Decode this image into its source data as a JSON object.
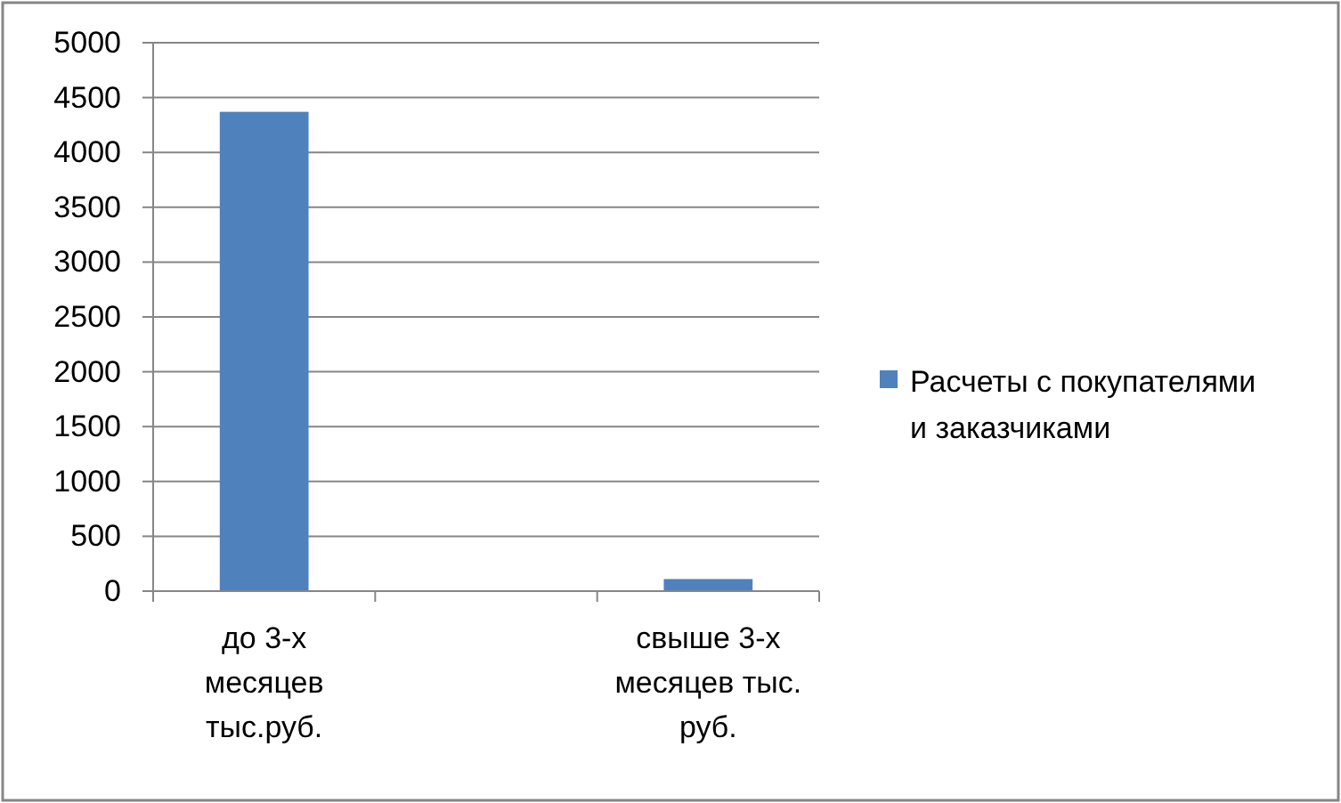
{
  "chart_data": {
    "type": "bar",
    "categories": [
      "до 3-х месяцев тыс.руб.",
      null,
      "свыше 3-х месяцев тыс. руб."
    ],
    "series": [
      {
        "name": "Расчеты с покупателями и заказчиками",
        "color": "#4f81bd",
        "values": [
          4370,
          null,
          110
        ]
      }
    ],
    "ylim": [
      0,
      5000
    ],
    "yticks": [
      0,
      500,
      1000,
      1500,
      2000,
      2500,
      3000,
      3500,
      4000,
      4500,
      5000
    ],
    "grid": "y",
    "legend": "right"
  }
}
